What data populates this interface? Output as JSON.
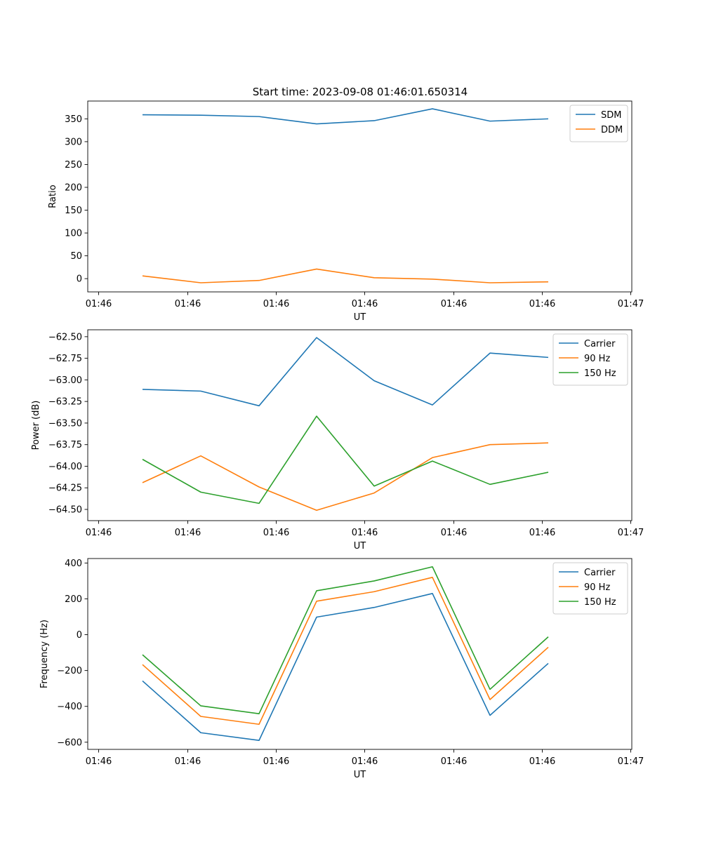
{
  "title": "Start time: 2023-09-08 01:46:01.650314",
  "colors": {
    "blue": "#1f77b4",
    "orange": "#ff7f0e",
    "green": "#2ca02c"
  },
  "chart_data": [
    {
      "type": "line",
      "xlabel": "UT",
      "ylabel": "Ratio",
      "x_tick_labels": [
        "01:46",
        "01:46",
        "01:46",
        "01:46",
        "01:46",
        "01:46",
        "01:47"
      ],
      "y_ticks": [
        0,
        50,
        100,
        150,
        200,
        250,
        300,
        350
      ],
      "y_tick_labels": [
        "0",
        "50",
        "100",
        "150",
        "200",
        "250",
        "300",
        "350"
      ],
      "ylim": [
        -29,
        389
      ],
      "legend_position": "top-right",
      "series": [
        {
          "name": "SDM",
          "color": "#1f77b4",
          "values": [
            359,
            358,
            355,
            339,
            346,
            372,
            345,
            350
          ]
        },
        {
          "name": "DDM",
          "color": "#ff7f0e",
          "values": [
            6,
            -9,
            -4,
            21,
            2,
            -1,
            -9,
            -7
          ]
        }
      ]
    },
    {
      "type": "line",
      "xlabel": "UT",
      "ylabel": "Power (dB)",
      "x_tick_labels": [
        "01:46",
        "01:46",
        "01:46",
        "01:46",
        "01:46",
        "01:46",
        "01:47"
      ],
      "y_ticks": [
        -64.5,
        -64.25,
        -64.0,
        -63.75,
        -63.5,
        -63.25,
        -63.0,
        -62.75,
        -62.5
      ],
      "y_tick_labels": [
        "−64.50",
        "−64.25",
        "−64.00",
        "−63.75",
        "−63.50",
        "−63.25",
        "−63.00",
        "−62.75",
        "−62.50"
      ],
      "ylim": [
        -64.63,
        -62.42
      ],
      "legend_position": "top-right",
      "series": [
        {
          "name": "Carrier",
          "color": "#1f77b4",
          "values": [
            -63.11,
            -63.13,
            -63.3,
            -62.51,
            -63.01,
            -63.29,
            -62.69,
            -62.74
          ]
        },
        {
          "name": "90 Hz",
          "color": "#ff7f0e",
          "values": [
            -64.19,
            -63.88,
            -64.24,
            -64.51,
            -64.31,
            -63.9,
            -63.75,
            -63.73
          ]
        },
        {
          "name": "150 Hz",
          "color": "#2ca02c",
          "values": [
            -63.92,
            -64.3,
            -64.43,
            -63.42,
            -64.23,
            -63.94,
            -64.21,
            -64.07
          ]
        }
      ]
    },
    {
      "type": "line",
      "xlabel": "UT",
      "ylabel": "Frequency (Hz)",
      "x_tick_labels": [
        "01:46",
        "01:46",
        "01:46",
        "01:46",
        "01:46",
        "01:46",
        "01:47"
      ],
      "y_ticks": [
        -600,
        -400,
        -200,
        0,
        200,
        400
      ],
      "y_tick_labels": [
        "−600",
        "−400",
        "−200",
        "0",
        "200",
        "400"
      ],
      "ylim": [
        -640,
        425
      ],
      "legend_position": "top-right",
      "series": [
        {
          "name": "Carrier",
          "color": "#1f77b4",
          "values": [
            -258,
            -547,
            -590,
            98,
            152,
            230,
            -450,
            -160
          ]
        },
        {
          "name": "90 Hz",
          "color": "#ff7f0e",
          "values": [
            -167,
            -456,
            -500,
            187,
            240,
            320,
            -362,
            -70
          ]
        },
        {
          "name": "150 Hz",
          "color": "#2ca02c",
          "values": [
            -112,
            -397,
            -441,
            245,
            300,
            379,
            -305,
            -12
          ]
        }
      ]
    }
  ]
}
